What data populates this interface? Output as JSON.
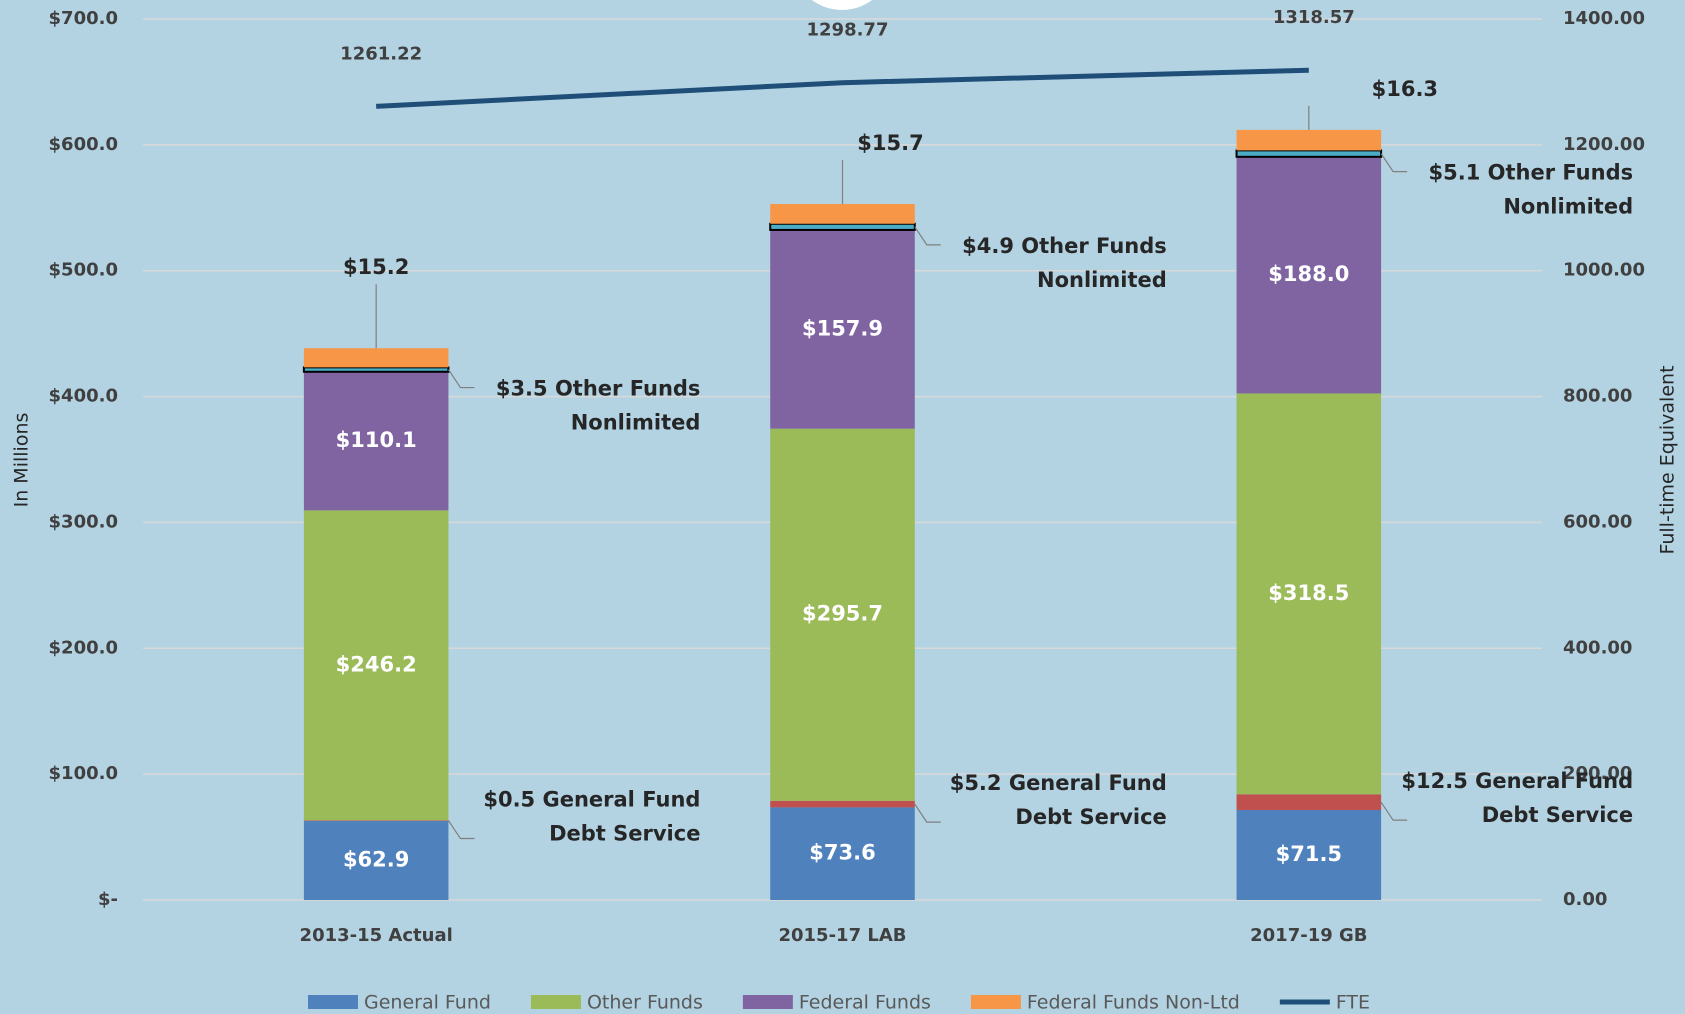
{
  "chart_data": {
    "type": "stacked_bar_line",
    "categories": [
      "2013-15 Actual",
      "2015-17 LAB",
      "2017-19 GB"
    ],
    "y_label": "In Millions",
    "y2_label": "Full-time Equivalent",
    "ylim": [
      0,
      700
    ],
    "yticks": [
      {
        "value": 0,
        "label": "$-"
      },
      {
        "value": 100,
        "label": "$100.0"
      },
      {
        "value": 200,
        "label": "$200.0"
      },
      {
        "value": 300,
        "label": "$300.0"
      },
      {
        "value": 400,
        "label": "$400.0"
      },
      {
        "value": 500,
        "label": "$500.0"
      },
      {
        "value": 600,
        "label": "$600.0"
      },
      {
        "value": 700,
        "label": "$700.0"
      }
    ],
    "y2lim": [
      0,
      1400
    ],
    "y2ticks": [
      {
        "value": 0,
        "label": "0.00"
      },
      {
        "value": 200,
        "label": "200.00"
      },
      {
        "value": 400,
        "label": "400.00"
      },
      {
        "value": 600,
        "label": "600.00"
      },
      {
        "value": 800,
        "label": "800.00"
      },
      {
        "value": 1000,
        "label": "1000.00"
      },
      {
        "value": 1200,
        "label": "1200.00"
      },
      {
        "value": 1400,
        "label": "1400.00"
      }
    ],
    "grid": true,
    "series": [
      {
        "name": "General Fund",
        "color": "#4f81bd",
        "values": [
          62.9,
          73.6,
          71.5
        ],
        "value_labels": [
          "$62.9",
          "$73.6",
          "$71.5"
        ]
      },
      {
        "color": "#c0504d",
        "values": [
          0.5,
          5.2,
          12.5
        ],
        "value_labels": [
          [
            "$0.5 General Fund",
            "Debt Service"
          ],
          [
            "$5.2 General Fund",
            "Debt Service"
          ],
          [
            "$12.5 General Fund",
            "Debt Service"
          ]
        ]
      },
      {
        "name": "Other Funds",
        "color": "#9bbb59",
        "values": [
          246.2,
          295.7,
          318.5
        ],
        "value_labels": [
          "$246.2",
          "$295.7",
          "$318.5"
        ]
      },
      {
        "name": "Federal Funds",
        "color": "#8064a2",
        "values": [
          110.1,
          157.9,
          188.0
        ],
        "value_labels": [
          "$110.1",
          "$157.9",
          "$188.0"
        ]
      },
      {
        "color": "#4bacc6",
        "values": [
          3.5,
          4.9,
          5.1
        ],
        "value_labels": [
          [
            "$3.5 Other Funds",
            "Nonlimited"
          ],
          [
            "$4.9 Other Funds",
            "Nonlimited"
          ],
          [
            "$5.1 Other Funds",
            "Nonlimited"
          ]
        ]
      },
      {
        "name": "Federal Funds Non-Ltd",
        "color": "#f79646",
        "values": [
          15.2,
          15.7,
          16.3
        ],
        "value_labels": [
          "$15.2",
          "$15.7",
          "$16.3"
        ]
      },
      {
        "name": "FTE",
        "color": "#1f4e79",
        "axis": "y2",
        "values": [
          1261.22,
          1298.77,
          1318.57
        ]
      }
    ]
  }
}
